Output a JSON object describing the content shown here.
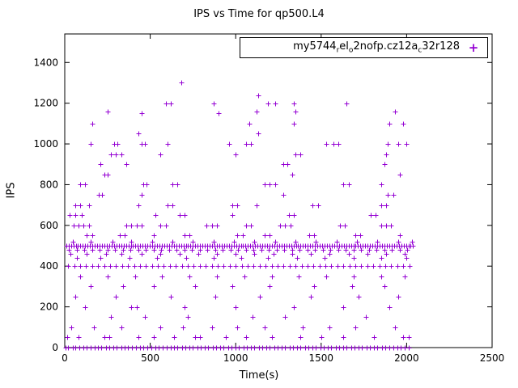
{
  "title": "IPS vs Time for qp500.L4",
  "legend": {
    "marker": "+",
    "plain_name": "my5744_rel_o2nofp.cz12a_c32r128",
    "segments": [
      {
        "text": "my5744",
        "sub": false
      },
      {
        "text": "r",
        "sub": true
      },
      {
        "text": "el",
        "sub": false
      },
      {
        "text": "o",
        "sub": true
      },
      {
        "text": "2nofp.cz12a",
        "sub": false
      },
      {
        "text": "c",
        "sub": true
      },
      {
        "text": "32r128",
        "sub": false
      }
    ]
  },
  "chart_data": {
    "type": "scatter",
    "title": "IPS vs Time for qp500.L4",
    "xlabel": "Time(s)",
    "ylabel": "IPS",
    "xlim": [
      0,
      2500
    ],
    "ylim": [
      0,
      1540
    ],
    "xticks": [
      0,
      500,
      1000,
      1500,
      2000,
      2500
    ],
    "yticks": [
      0,
      200,
      400,
      600,
      800,
      1000,
      1200,
      1400
    ],
    "grid": false,
    "legend_position": "top-right-inside",
    "marker": "plus",
    "marker_color": "#9400d3",
    "series": [
      {
        "name": "my5744_rel_o2nofp.cz12a_c32r128",
        "rows": [
          {
            "y": 0,
            "xs": [
              5,
              20,
              45,
              60,
              85,
              110,
              130,
              150,
              175,
              195,
              215,
              240,
              260,
              285,
              305,
              330,
              350,
              370,
              395,
              415,
              440,
              460,
              485,
              505,
              530,
              550,
              575,
              595,
              620,
              640,
              660,
              685,
              705,
              730,
              750,
              775,
              795,
              820,
              840,
              865,
              885,
              910,
              930,
              955,
              975,
              1000,
              1020,
              1045,
              1065,
              1090,
              1110,
              1135,
              1155,
              1180,
              1200,
              1225,
              1245,
              1270,
              1290,
              1315,
              1335,
              1360,
              1380,
              1405,
              1425,
              1450,
              1470,
              1495,
              1515,
              1540,
              1560,
              1585,
              1605,
              1630,
              1650,
              1675,
              1695,
              1720,
              1740,
              1765,
              1785,
              1810,
              1830,
              1855,
              1875,
              1900,
              1920,
              1945,
              1965,
              1990,
              2010
            ]
          },
          {
            "y": 50,
            "xs": [
              15,
              80,
              230,
              260,
              430,
              520,
              640,
              760,
              790,
              940,
              1060,
              1210,
              1380,
              1500,
              1630,
              1810,
              1980,
              2010
            ]
          },
          {
            "y": 100,
            "xs": [
              40,
              170,
              330,
              560,
              690,
              860,
              1010,
              1170,
              1390,
              1550,
              1700,
              1930
            ]
          },
          {
            "y": 150,
            "xs": [
              270,
              470,
              720,
              1100,
              1290,
              1760
            ]
          },
          {
            "y": 200,
            "xs": [
              120,
              390,
              420,
              700,
              1000,
              1340,
              1630,
              1900
            ]
          },
          {
            "y": 250,
            "xs": [
              60,
              300,
              620,
              880,
              1140,
              1440,
              1720,
              1950
            ]
          },
          {
            "y": 300,
            "xs": [
              150,
              340,
              520,
              760,
              980,
              1200,
              1460,
              1680,
              1870
            ]
          },
          {
            "y": 350,
            "xs": [
              90,
              250,
              410,
              570,
              730,
              890,
              1050,
              1210,
              1370,
              1530,
              1690,
              1850,
              1990
            ]
          },
          {
            "y": 400,
            "xs": [
              20,
              55,
              90,
              125,
              160,
              195,
              230,
              265,
              300,
              335,
              370,
              405,
              440,
              475,
              510,
              545,
              580,
              615,
              650,
              685,
              720,
              755,
              790,
              825,
              860,
              895,
              930,
              965,
              1000,
              1035,
              1070,
              1105,
              1140,
              1175,
              1210,
              1245,
              1280,
              1315,
              1350,
              1385,
              1420,
              1455,
              1490,
              1525,
              1560,
              1595,
              1630,
              1665,
              1700,
              1735,
              1770,
              1805,
              1840,
              1875,
              1910,
              1945,
              1980,
              2015
            ]
          },
          {
            "y": 440,
            "xs": [
              70,
              210,
              380,
              540,
              710,
              870,
              1030,
              1190,
              1360,
              1520,
              1690,
              1850,
              2000
            ]
          },
          {
            "y": 460,
            "xs": [
              35,
              130,
              240,
              330,
              450,
              560,
              670,
              780,
              890,
              1000,
              1110,
              1220,
              1330,
              1440,
              1550,
              1660,
              1770,
              1880,
              1990
            ]
          },
          {
            "y": 480,
            "xs": [
              25,
              70,
              115,
              160,
              205,
              250,
              295,
              340,
              385,
              430,
              475,
              520,
              565,
              610,
              655,
              700,
              745,
              790,
              835,
              880,
              925,
              970,
              1015,
              1060,
              1105,
              1150,
              1195,
              1240,
              1285,
              1330,
              1375,
              1420,
              1465,
              1510,
              1555,
              1600,
              1645,
              1690,
              1735,
              1780,
              1825,
              1870,
              1915,
              1960,
              2005
            ]
          },
          {
            "y": 500,
            "xs": [
              8,
              22,
              36,
              50,
              64,
              78,
              92,
              106,
              120,
              134,
              148,
              162,
              176,
              190,
              204,
              218,
              232,
              246,
              260,
              274,
              288,
              302,
              316,
              330,
              344,
              358,
              372,
              386,
              400,
              414,
              428,
              442,
              456,
              470,
              484,
              498,
              512,
              526,
              540,
              554,
              568,
              582,
              596,
              610,
              624,
              638,
              652,
              666,
              680,
              694,
              708,
              722,
              736,
              750,
              764,
              778,
              792,
              806,
              820,
              834,
              848,
              862,
              876,
              890,
              904,
              918,
              932,
              946,
              960,
              974,
              988,
              1002,
              1016,
              1030,
              1044,
              1058,
              1072,
              1086,
              1100,
              1114,
              1128,
              1142,
              1156,
              1170,
              1184,
              1198,
              1212,
              1226,
              1240,
              1254,
              1268,
              1282,
              1296,
              1310,
              1324,
              1338,
              1352,
              1366,
              1380,
              1394,
              1408,
              1422,
              1436,
              1450,
              1464,
              1478,
              1492,
              1506,
              1520,
              1534,
              1548,
              1562,
              1576,
              1590,
              1604,
              1618,
              1632,
              1646,
              1660,
              1674,
              1688,
              1702,
              1716,
              1730,
              1744,
              1758,
              1772,
              1786,
              1800,
              1814,
              1828,
              1842,
              1856,
              1870,
              1884,
              1898,
              1912,
              1926,
              1940,
              1954,
              1968,
              1982,
              1996,
              2010,
              2024,
              2038
            ]
          },
          {
            "y": 520,
            "xs": [
              45,
              150,
              280,
              390,
              510,
              630,
              750,
              870,
              990,
              1110,
              1230,
              1350,
              1470,
              1590,
              1710,
              1830,
              1950,
              2030
            ]
          },
          {
            "y": 550,
            "xs": [
              130,
              160,
              320,
              350,
              520,
              700,
              730,
              1010,
              1040,
              1170,
              1200,
              1430,
              1460,
              1700,
              1730,
              1960
            ]
          },
          {
            "y": 600,
            "xs": [
              50,
              80,
              110,
              140,
              360,
              390,
              420,
              450,
              560,
              590,
              830,
              860,
              890,
              1060,
              1090,
              1260,
              1290,
              1320,
              1610,
              1640,
              1850,
              1880,
              1910
            ]
          },
          {
            "y": 650,
            "xs": [
              30,
              60,
              100,
              530,
              670,
              700,
              980,
              1310,
              1340,
              1790,
              1820
            ]
          },
          {
            "y": 700,
            "xs": [
              60,
              90,
              140,
              430,
              600,
              630,
              980,
              1010,
              1120,
              1450,
              1480,
              1850,
              1880
            ]
          },
          {
            "y": 750,
            "xs": [
              200,
              220,
              450,
              1280,
              1890,
              1920
            ]
          },
          {
            "y": 800,
            "xs": [
              90,
              120,
              460,
              480,
              630,
              660,
              1170,
              1200,
              1230,
              1630,
              1660,
              1850
            ]
          },
          {
            "y": 850,
            "xs": [
              230,
              250,
              1330,
              1960
            ]
          },
          {
            "y": 900,
            "xs": [
              210,
              360,
              1280,
              1300,
              1870
            ]
          },
          {
            "y": 950,
            "xs": [
              270,
              300,
              330,
              560,
              1000,
              1350,
              1380,
              1880
            ]
          },
          {
            "y": 1000,
            "xs": [
              150,
              290,
              310,
              450,
              470,
              600,
              960,
              1060,
              1090,
              1530,
              1570,
              1600,
              1890,
              1950,
              2000
            ]
          },
          {
            "y": 1050,
            "xs": [
              430,
              1130
            ]
          },
          {
            "y": 1100,
            "xs": [
              160,
              1080,
              1340,
              1900,
              1980
            ]
          },
          {
            "y": 1150,
            "xs": [
              450,
              900
            ]
          },
          {
            "y": 1160,
            "xs": [
              250,
              1120,
              1350,
              1930
            ]
          },
          {
            "y": 1200,
            "xs": [
              590,
              620,
              870,
              1190,
              1230,
              1340,
              1650
            ]
          },
          {
            "y": 1240,
            "xs": [
              1130
            ]
          },
          {
            "y": 1300,
            "xs": [
              680
            ]
          }
        ]
      }
    ]
  },
  "axis": {
    "xlabel": "Time(s)",
    "ylabel": "IPS"
  }
}
